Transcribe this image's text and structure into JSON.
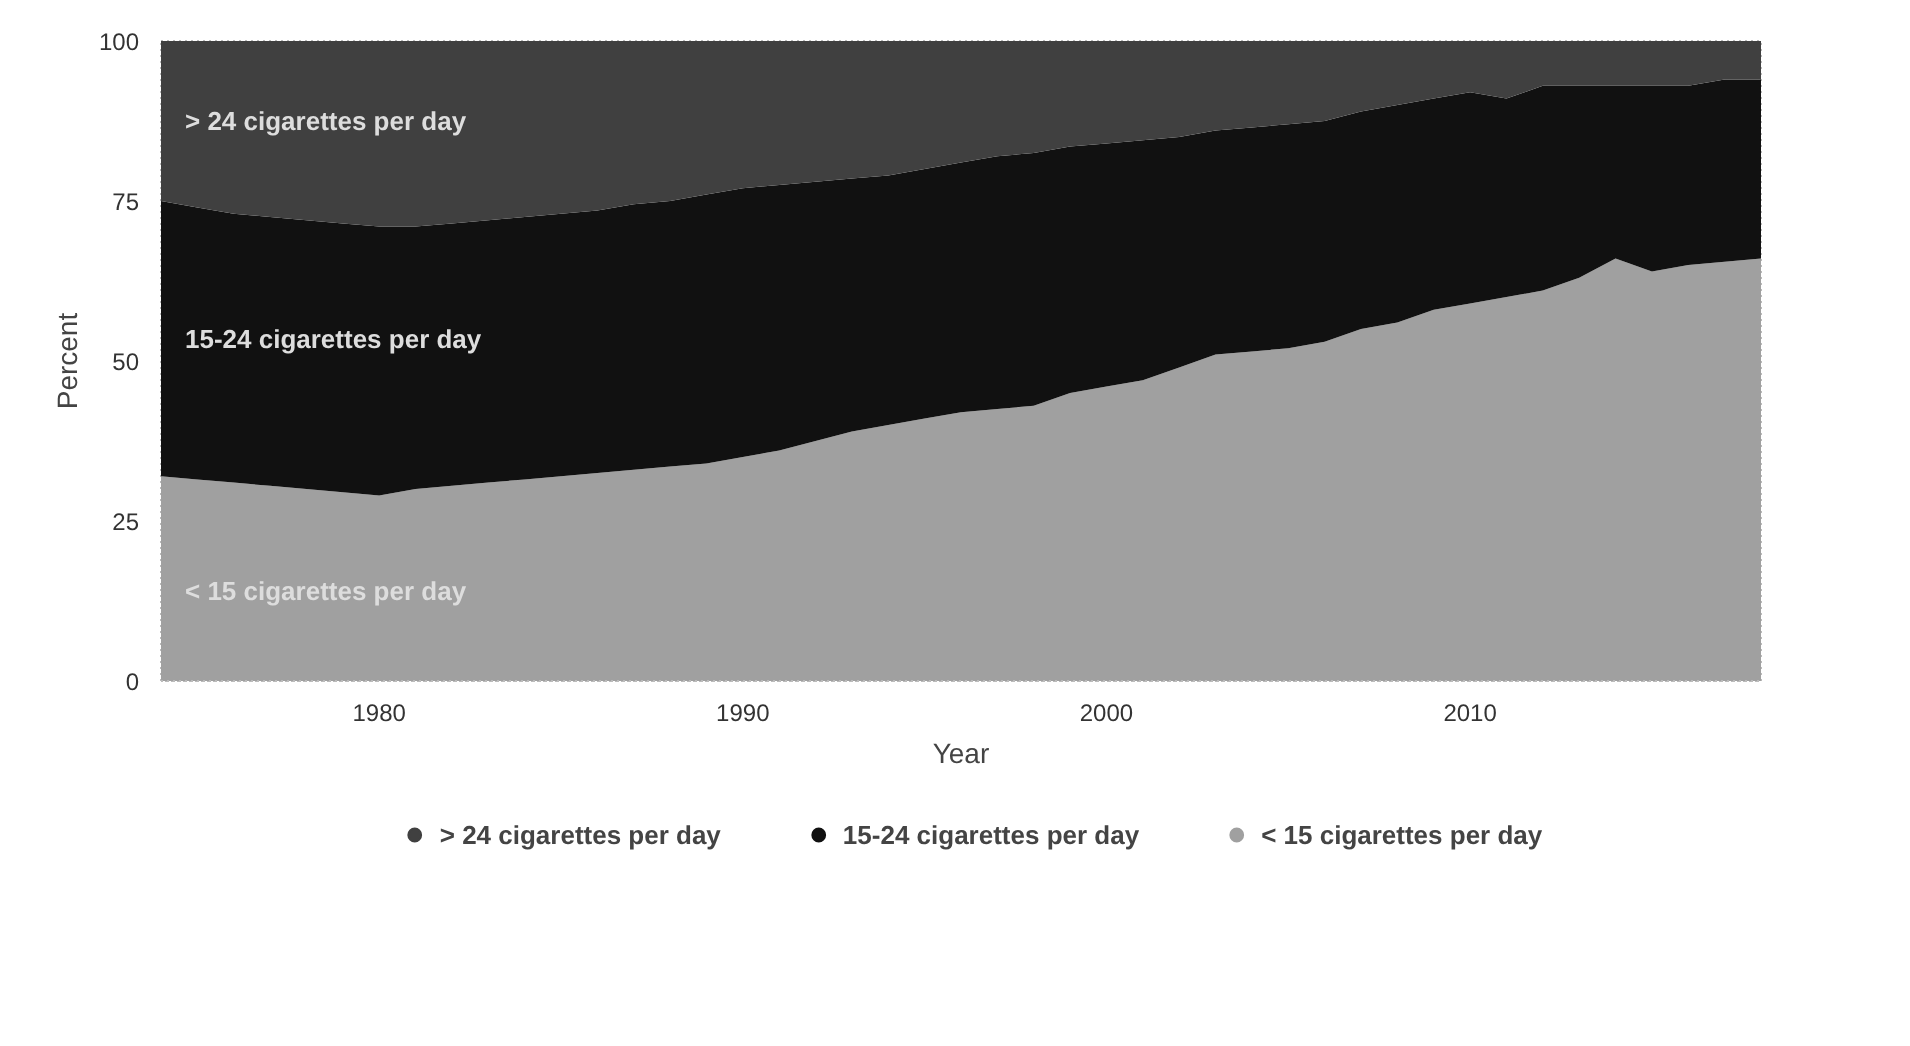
{
  "chart_data": {
    "type": "area",
    "stacked": true,
    "xlabel": "Year",
    "ylabel": "Percent",
    "x": [
      1974,
      1975,
      1976,
      1977,
      1978,
      1979,
      1980,
      1981,
      1982,
      1983,
      1984,
      1985,
      1986,
      1987,
      1988,
      1989,
      1990,
      1991,
      1992,
      1993,
      1994,
      1995,
      1996,
      1997,
      1998,
      1999,
      2000,
      2001,
      2002,
      2003,
      2004,
      2005,
      2006,
      2007,
      2008,
      2009,
      2010,
      2011,
      2012,
      2013,
      2014,
      2015,
      2016,
      2017,
      2018
    ],
    "series": [
      {
        "name": "< 15 cigarettes per day",
        "color": "#a0a0a0",
        "values": [
          32,
          31.5,
          31,
          30.5,
          30,
          29.5,
          29,
          30,
          30.5,
          31,
          31.5,
          32,
          32.5,
          33,
          33.5,
          34,
          35,
          36,
          37.5,
          39,
          40,
          41,
          42,
          42.5,
          43,
          45,
          46,
          47,
          49,
          51,
          51.5,
          52,
          53,
          55,
          56,
          58,
          59,
          60,
          61,
          63,
          66,
          64,
          65,
          65.5,
          66
        ]
      },
      {
        "name": "15-24 cigarettes per day",
        "color": "#111111",
        "values": [
          43,
          42.5,
          42,
          42,
          42,
          42,
          42,
          41,
          41,
          41,
          41,
          41,
          41,
          41.5,
          41.5,
          42,
          42,
          41.5,
          40.5,
          39.5,
          39,
          39,
          39,
          39.5,
          39.5,
          38.5,
          38,
          37.5,
          36,
          35,
          35,
          35,
          34.5,
          34,
          34,
          33,
          33,
          31,
          32,
          30,
          27,
          29,
          28,
          28.5,
          28
        ]
      },
      {
        "name": "> 24 cigarettes per day",
        "color": "#404040",
        "values": [
          25,
          26,
          27,
          27.5,
          28,
          28.5,
          29,
          29,
          28.5,
          28,
          27.5,
          27,
          26.5,
          25.5,
          25,
          24,
          23,
          22.5,
          22,
          21.5,
          21,
          20,
          19,
          18,
          17.5,
          16.5,
          16,
          15.5,
          15,
          14,
          13.5,
          13,
          12.5,
          11,
          10,
          9,
          8,
          9,
          7,
          7,
          7,
          7,
          7,
          6,
          6
        ]
      }
    ],
    "xlim": [
      1974,
      2018
    ],
    "ylim": [
      0,
      100
    ],
    "xticks": [
      1980,
      1990,
      2000,
      2010
    ],
    "yticks": [
      0,
      25,
      50,
      75,
      100
    ],
    "legend": "bottom"
  }
}
